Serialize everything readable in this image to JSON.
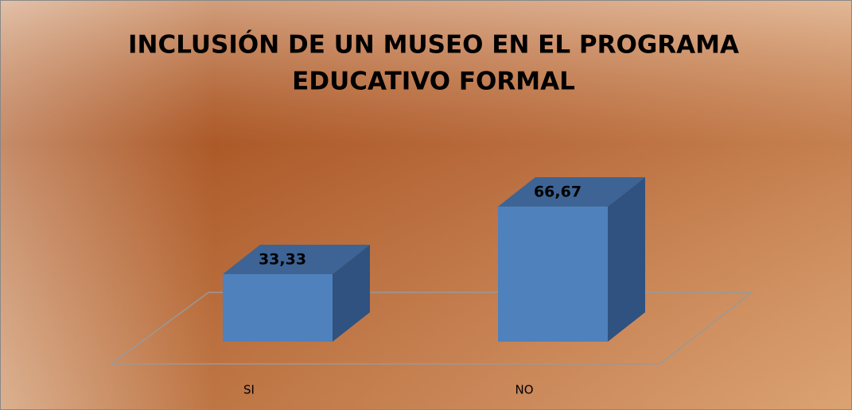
{
  "chart_data": {
    "type": "bar3d",
    "title": [
      "INCLUSIÓN DE UN MUSEO EN EL PROGRAMA",
      "EDUCATIVO FORMAL"
    ],
    "categories": [
      "SI",
      "NO"
    ],
    "values": [
      33.33,
      66.67
    ],
    "value_labels": [
      "33,33",
      "66,67"
    ],
    "color": "#4f81bd"
  }
}
